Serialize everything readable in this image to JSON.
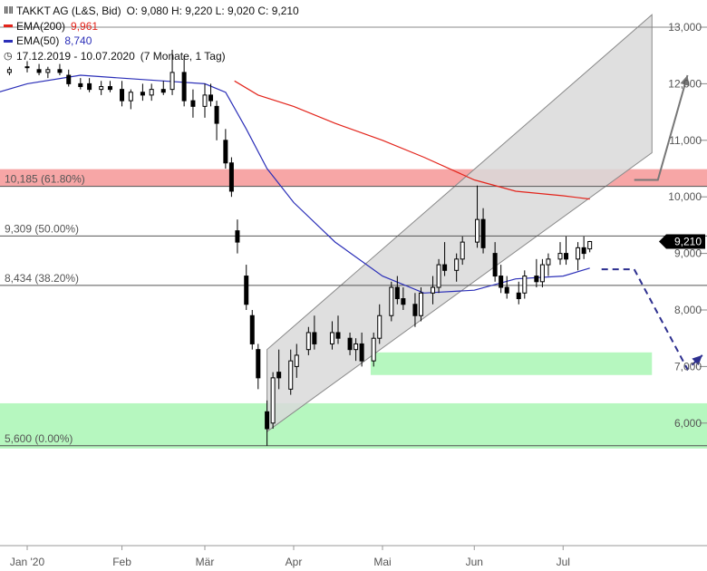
{
  "legend": {
    "title": "TAKKT AG (L&S, Bid)",
    "ohlc": "O: 9,080  H: 9,220  L: 9,020  C: 9,210",
    "ema200_label": "EMA(200)",
    "ema200_value": "9,961",
    "ema50_label": "EMA(50)",
    "ema50_value": "8,740",
    "range": "17.12.2019 - 10.07.2020",
    "interval": "(7 Monate, 1 Tag)"
  },
  "colors": {
    "ema200": "#e3241b",
    "ema50": "#2b2fb8",
    "fib_line": "#555555",
    "fib_band_red": "#f7a6a6",
    "zone_green": "#b6f7bf",
    "channel_fill": "#d9d9d9",
    "forecast_up": "#777777",
    "forecast_down": "#2d2f8f",
    "price_badge": "#000000"
  },
  "chart_data": {
    "type": "candlestick",
    "title": "TAKKT AG (L&S, Bid)",
    "y_ticks": [
      {
        "value": 13.0,
        "label": "13,000"
      },
      {
        "value": 12.0,
        "label": "12,000"
      },
      {
        "value": 11.0,
        "label": "11,000"
      },
      {
        "value": 10.0,
        "label": "10,000"
      },
      {
        "value": 9.0,
        "label": "9,000"
      },
      {
        "value": 8.0,
        "label": "8,000"
      },
      {
        "value": 7.0,
        "label": "7,000"
      },
      {
        "value": 6.0,
        "label": "6,000"
      }
    ],
    "x_ticks": [
      {
        "date": "2020-01-02",
        "label": "Jan '20"
      },
      {
        "date": "2020-02-03",
        "label": "Feb"
      },
      {
        "date": "2020-03-02",
        "label": "Mär"
      },
      {
        "date": "2020-04-01",
        "label": "Apr"
      },
      {
        "date": "2020-05-01",
        "label": "Mai"
      },
      {
        "date": "2020-06-01",
        "label": "Jun"
      },
      {
        "date": "2020-07-01",
        "label": "Jul"
      }
    ],
    "fib_levels": [
      {
        "value": 10.185,
        "label": "10,185 (61.80%)"
      },
      {
        "value": 9.309,
        "label": "9,309 (50.00%)"
      },
      {
        "value": 8.434,
        "label": "8,434 (38.20%)"
      },
      {
        "value": 5.6,
        "label": "5,600 (0.00%)"
      }
    ],
    "last_price": {
      "value": 9.21,
      "label": "9,210"
    },
    "candles": [
      [
        "2019-12-17",
        12.2,
        12.3,
        12.1,
        12.1
      ],
      [
        "2019-12-19",
        12.1,
        12.2,
        12.0,
        12.1
      ],
      [
        "2019-12-23",
        12.15,
        12.3,
        12.1,
        12.2
      ],
      [
        "2019-12-27",
        12.2,
        12.3,
        12.15,
        12.25
      ],
      [
        "2020-01-02",
        12.3,
        12.4,
        12.2,
        12.3
      ],
      [
        "2020-01-06",
        12.25,
        12.35,
        12.15,
        12.2
      ],
      [
        "2020-01-09",
        12.2,
        12.3,
        12.1,
        12.25
      ],
      [
        "2020-01-13",
        12.25,
        12.35,
        12.15,
        12.2
      ],
      [
        "2020-01-16",
        12.15,
        12.25,
        11.95,
        12.0
      ],
      [
        "2020-01-20",
        12.0,
        12.1,
        11.9,
        11.95
      ],
      [
        "2020-01-23",
        12.0,
        12.1,
        11.85,
        11.9
      ],
      [
        "2020-01-27",
        11.9,
        12.05,
        11.8,
        11.95
      ],
      [
        "2020-01-30",
        11.95,
        12.05,
        11.85,
        11.9
      ],
      [
        "2020-02-03",
        11.9,
        12.05,
        11.6,
        11.7
      ],
      [
        "2020-02-06",
        11.7,
        11.9,
        11.55,
        11.85
      ],
      [
        "2020-02-10",
        11.85,
        12.0,
        11.7,
        11.8
      ],
      [
        "2020-02-13",
        11.8,
        12.0,
        11.7,
        11.9
      ],
      [
        "2020-02-17",
        11.9,
        12.05,
        11.8,
        11.85
      ],
      [
        "2020-02-20",
        11.9,
        12.6,
        11.8,
        12.2
      ],
      [
        "2020-02-24",
        12.2,
        12.5,
        11.6,
        11.7
      ],
      [
        "2020-02-27",
        11.7,
        11.9,
        11.4,
        11.6
      ],
      [
        "2020-03-02",
        11.6,
        12.0,
        11.4,
        11.8
      ],
      [
        "2020-03-04",
        11.8,
        12.0,
        11.6,
        11.7
      ],
      [
        "2020-03-06",
        11.6,
        11.7,
        11.0,
        11.3
      ],
      [
        "2020-03-09",
        11.0,
        11.2,
        10.5,
        10.6
      ],
      [
        "2020-03-11",
        10.6,
        10.7,
        10.0,
        10.1
      ],
      [
        "2020-03-13",
        9.4,
        9.6,
        9.0,
        9.2
      ],
      [
        "2020-03-16",
        8.6,
        8.8,
        8.0,
        8.1
      ],
      [
        "2020-03-18",
        7.9,
        8.0,
        7.3,
        7.4
      ],
      [
        "2020-03-20",
        7.3,
        7.4,
        6.6,
        6.8
      ],
      [
        "2020-03-23",
        6.2,
        6.4,
        5.6,
        5.9
      ],
      [
        "2020-03-25",
        6.0,
        6.9,
        5.9,
        6.8
      ],
      [
        "2020-03-27",
        6.9,
        7.3,
        6.6,
        6.8
      ],
      [
        "2020-03-31",
        6.6,
        7.3,
        6.5,
        7.1
      ],
      [
        "2020-04-02",
        7.0,
        7.4,
        6.8,
        7.2
      ],
      [
        "2020-04-06",
        7.3,
        7.7,
        7.2,
        7.6
      ],
      [
        "2020-04-08",
        7.6,
        7.9,
        7.3,
        7.4
      ],
      [
        "2020-04-14",
        7.4,
        7.8,
        7.3,
        7.6
      ],
      [
        "2020-04-16",
        7.6,
        7.9,
        7.4,
        7.5
      ],
      [
        "2020-04-20",
        7.5,
        7.6,
        7.2,
        7.3
      ],
      [
        "2020-04-22",
        7.3,
        7.5,
        7.1,
        7.4
      ],
      [
        "2020-04-24",
        7.4,
        7.6,
        7.0,
        7.1
      ],
      [
        "2020-04-28",
        7.1,
        7.6,
        7.0,
        7.5
      ],
      [
        "2020-04-30",
        7.5,
        8.1,
        7.4,
        7.9
      ],
      [
        "2020-05-04",
        7.9,
        8.5,
        7.8,
        8.4
      ],
      [
        "2020-05-06",
        8.4,
        8.6,
        8.1,
        8.2
      ],
      [
        "2020-05-08",
        8.2,
        8.4,
        8.0,
        8.1
      ],
      [
        "2020-05-12",
        8.1,
        8.3,
        7.7,
        7.9
      ],
      [
        "2020-05-14",
        7.9,
        8.4,
        7.8,
        8.3
      ],
      [
        "2020-05-18",
        8.3,
        8.6,
        8.1,
        8.4
      ],
      [
        "2020-05-20",
        8.4,
        8.9,
        8.3,
        8.8
      ],
      [
        "2020-05-22",
        8.8,
        9.2,
        8.6,
        8.7
      ],
      [
        "2020-05-26",
        8.7,
        9.0,
        8.5,
        8.9
      ],
      [
        "2020-05-28",
        8.9,
        9.3,
        8.8,
        9.2
      ],
      [
        "2020-06-02",
        9.2,
        10.2,
        9.1,
        9.6
      ],
      [
        "2020-06-04",
        9.6,
        9.8,
        9.0,
        9.1
      ],
      [
        "2020-06-08",
        9.0,
        9.2,
        8.5,
        8.6
      ],
      [
        "2020-06-10",
        8.6,
        8.8,
        8.3,
        8.4
      ],
      [
        "2020-06-12",
        8.4,
        8.6,
        8.2,
        8.3
      ],
      [
        "2020-06-16",
        8.3,
        8.5,
        8.1,
        8.2
      ],
      [
        "2020-06-18",
        8.3,
        8.7,
        8.2,
        8.6
      ],
      [
        "2020-06-22",
        8.6,
        8.9,
        8.4,
        8.5
      ],
      [
        "2020-06-24",
        8.5,
        8.9,
        8.4,
        8.8
      ],
      [
        "2020-06-26",
        8.8,
        9.0,
        8.6,
        8.9
      ],
      [
        "2020-06-30",
        8.9,
        9.2,
        8.8,
        9.0
      ],
      [
        "2020-07-02",
        9.0,
        9.3,
        8.8,
        8.9
      ],
      [
        "2020-07-06",
        8.9,
        9.2,
        8.7,
        9.1
      ],
      [
        "2020-07-08",
        9.1,
        9.3,
        8.9,
        9.0
      ],
      [
        "2020-07-10",
        9.08,
        9.22,
        9.02,
        9.21
      ]
    ],
    "ema200": [
      [
        "2020-03-12",
        12.05
      ],
      [
        "2020-03-20",
        11.8
      ],
      [
        "2020-04-01",
        11.6
      ],
      [
        "2020-04-15",
        11.3
      ],
      [
        "2020-05-01",
        11.0
      ],
      [
        "2020-05-15",
        10.7
      ],
      [
        "2020-06-01",
        10.3
      ],
      [
        "2020-06-15",
        10.1
      ],
      [
        "2020-07-01",
        10.02
      ],
      [
        "2020-07-10",
        9.961
      ]
    ],
    "ema50": [
      [
        "2019-12-20",
        11.8
      ],
      [
        "2020-01-02",
        12.0
      ],
      [
        "2020-01-20",
        12.15
      ],
      [
        "2020-02-03",
        12.1
      ],
      [
        "2020-02-17",
        12.05
      ],
      [
        "2020-03-02",
        12.0
      ],
      [
        "2020-03-09",
        11.85
      ],
      [
        "2020-03-16",
        11.2
      ],
      [
        "2020-03-23",
        10.5
      ],
      [
        "2020-04-01",
        9.9
      ],
      [
        "2020-04-15",
        9.2
      ],
      [
        "2020-05-01",
        8.6
      ],
      [
        "2020-05-15",
        8.3
      ],
      [
        "2020-06-01",
        8.35
      ],
      [
        "2020-06-15",
        8.55
      ],
      [
        "2020-07-01",
        8.6
      ],
      [
        "2020-07-10",
        8.74
      ]
    ],
    "channel": {
      "lower_start": [
        "2020-03-23",
        5.85
      ],
      "lower_end": [
        "2020-07-31",
        10.78
      ],
      "upper_start": [
        "2020-03-23",
        7.3
      ],
      "upper_end": [
        "2020-07-31",
        13.22
      ]
    },
    "zones": [
      {
        "from_date": "2020-04-27",
        "to_date": "2020-07-31",
        "low": 6.85,
        "high": 7.25
      },
      {
        "from_date": "2019-12-17",
        "to_date": "2020-08-31",
        "low": 5.55,
        "high": 6.35
      }
    ],
    "forecast_up": [
      [
        "2020-07-25",
        10.3
      ],
      [
        "2020-08-02",
        10.3
      ],
      [
        "2020-08-12",
        12.15
      ]
    ],
    "forecast_down": [
      [
        "2020-07-14",
        8.72
      ],
      [
        "2020-07-25",
        8.72
      ],
      [
        "2020-08-12",
        6.95
      ],
      [
        "2020-08-17",
        7.2
      ]
    ]
  }
}
